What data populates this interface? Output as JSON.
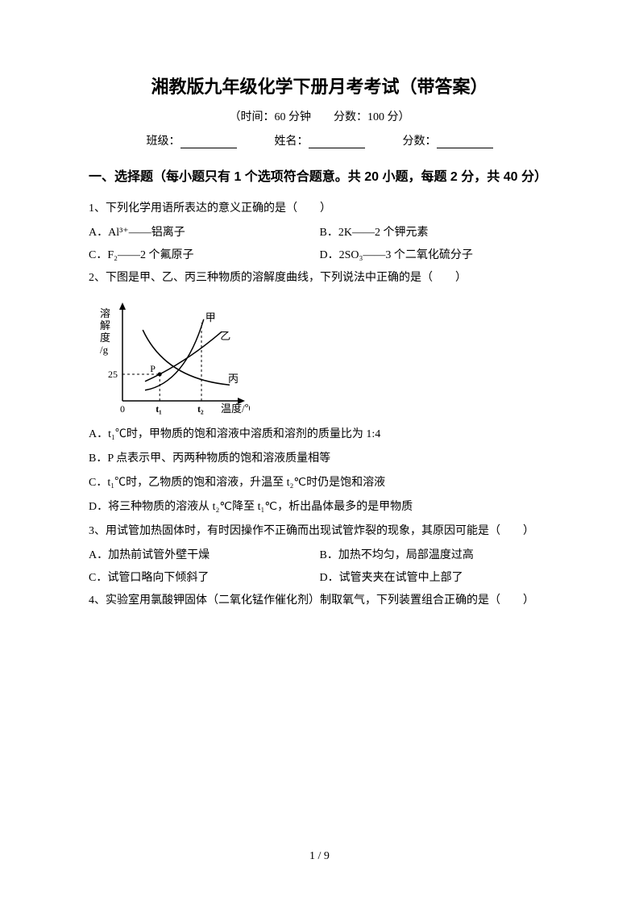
{
  "title": "湘教版九年级化学下册月考考试（带答案）",
  "subtitle": "（时间：60 分钟　　分数：100 分）",
  "info": {
    "class_label": "班级：",
    "name_label": "姓名：",
    "score_label": "分数："
  },
  "section1_header": "一、选择题（每小题只有 1 个选项符合题意。共 20 小题，每题 2 分，共 40 分）",
  "q1": {
    "stem": "1、下列化学用语所表达的意义正确的是（　　）",
    "optA": "A．Al³⁺——铝离子",
    "optB": "B．2K——2 个钾元素",
    "optC": "C．F₂——2 个氟原子",
    "optD": "D．2SO₃——3 个二氧化硫分子"
  },
  "q2": {
    "stem": "2、下图是甲、乙、丙三种物质的溶解度曲线，下列说法中正确的是（　　）",
    "optA": "A．t₁℃时，甲物质的饱和溶液中溶质和溶剂的质量比为 1:4",
    "optB": "B．P 点表示甲、丙两种物质的饱和溶液质量相等",
    "optC": "C．t₁℃时，乙物质的饱和溶液，升温至 t₂℃时仍是饱和溶液",
    "optD": "D．将三种物质的溶液从 t₂℃降至 t₁℃，析出晶体最多的是甲物质"
  },
  "q3": {
    "stem": "3、用试管加热固体时，有时因操作不正确而出现试管炸裂的现象，其原因可能是（　　）",
    "optA": "A．加热前试管外壁干燥",
    "optB": "B．加热不均匀，局部温度过高",
    "optC": "C．试管口略向下倾斜了",
    "optD": "D．试管夹夹在试管中上部了"
  },
  "q4": {
    "stem": "4、实验室用氯酸钾固体（二氧化锰作催化剂）制取氧气，下列装置组合正确的是（　　）"
  },
  "page_num": "1 / 9",
  "chart": {
    "type": "line",
    "y_label_lines": [
      "溶",
      "解",
      "度",
      "/g"
    ],
    "y_tick_label": "25",
    "x_axis_label": "温度/℃",
    "x_tick_labels": [
      "0",
      "t₁",
      "t₂"
    ],
    "point_label": "P",
    "curve_labels": {
      "jia": "甲",
      "yi": "乙",
      "bing": "丙"
    },
    "colors": {
      "axis": "#000000",
      "curve": "#000000",
      "dash": "#000000",
      "text": "#000000",
      "background": "#ffffff"
    },
    "stroke_width": {
      "axis": 1.5,
      "curve": 1.5,
      "dash": 1
    },
    "font_size": {
      "axis_label": 13,
      "tick": 12,
      "curve_label": 13
    },
    "x_range": [
      0,
      100
    ],
    "y_range": [
      0,
      100
    ],
    "curves": {
      "jia": {
        "start": [
          20,
          12
        ],
        "ctrl": [
          55,
          20
        ],
        "end": [
          72,
          92
        ]
      },
      "yi": {
        "start": [
          20,
          22
        ],
        "ctrl": [
          55,
          42
        ],
        "end": [
          88,
          78
        ]
      },
      "bing": {
        "start": [
          18,
          80
        ],
        "ctrl": [
          38,
          25
        ],
        "end": [
          95,
          18
        ]
      }
    },
    "p_point": [
      33,
      30
    ],
    "t1_x": 33,
    "t2_x": 70,
    "y25": 30
  }
}
